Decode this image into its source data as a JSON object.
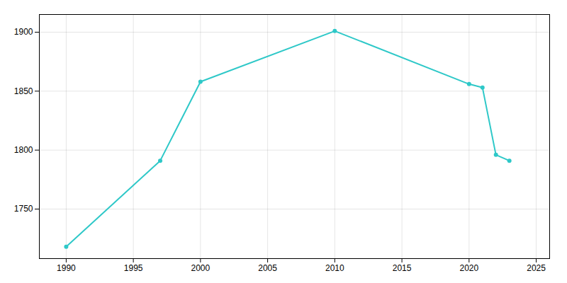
{
  "chart_data": {
    "type": "line",
    "x": [
      1990,
      1997,
      2000,
      2010,
      2020,
      2021,
      2022,
      2023
    ],
    "values": [
      1718,
      1791,
      1858,
      1901,
      1856,
      1853,
      1796,
      1791
    ],
    "color": "#2ec8c8",
    "marker": "circle",
    "xlim": [
      1988,
      2026
    ],
    "ylim": [
      1708,
      1915
    ],
    "xticks": [
      1990,
      1995,
      2000,
      2005,
      2010,
      2015,
      2020,
      2025
    ],
    "yticks": [
      1750,
      1800,
      1850,
      1900
    ],
    "grid": true
  }
}
